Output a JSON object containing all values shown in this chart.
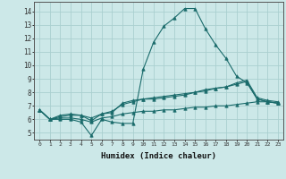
{
  "xlabel": "Humidex (Indice chaleur)",
  "bg_color": "#cce8e8",
  "grid_color": "#aad0d0",
  "line_color": "#1a6b6b",
  "x": [
    0,
    1,
    2,
    3,
    4,
    5,
    6,
    7,
    8,
    9,
    10,
    11,
    12,
    13,
    14,
    15,
    16,
    17,
    18,
    19,
    20,
    21,
    22,
    23
  ],
  "line1": [
    6.7,
    6.0,
    6.0,
    6.0,
    5.8,
    4.8,
    6.0,
    5.8,
    5.7,
    5.7,
    9.7,
    11.7,
    12.9,
    13.5,
    14.2,
    14.2,
    12.7,
    11.5,
    10.5,
    9.2,
    8.7,
    7.5,
    7.3,
    7.2
  ],
  "line2": [
    6.7,
    6.0,
    6.3,
    6.4,
    6.3,
    5.9,
    6.4,
    6.5,
    7.2,
    7.4,
    7.5,
    7.6,
    7.7,
    7.8,
    7.9,
    8.0,
    8.2,
    8.3,
    8.4,
    8.6,
    8.8,
    7.5,
    7.3,
    7.2
  ],
  "line3": [
    6.7,
    6.0,
    6.2,
    6.3,
    6.3,
    6.1,
    6.4,
    6.6,
    7.1,
    7.3,
    7.5,
    7.5,
    7.6,
    7.7,
    7.8,
    8.0,
    8.1,
    8.3,
    8.4,
    8.7,
    8.9,
    7.6,
    7.4,
    7.3
  ],
  "line4": [
    6.7,
    6.0,
    6.1,
    6.1,
    6.0,
    5.8,
    6.1,
    6.2,
    6.4,
    6.5,
    6.6,
    6.6,
    6.7,
    6.7,
    6.8,
    6.9,
    6.9,
    7.0,
    7.0,
    7.1,
    7.2,
    7.3,
    7.3,
    7.2
  ],
  "ylim": [
    4.5,
    14.7
  ],
  "xlim": [
    -0.5,
    23.5
  ],
  "yticks": [
    5,
    6,
    7,
    8,
    9,
    10,
    11,
    12,
    13,
    14
  ],
  "xticks": [
    0,
    1,
    2,
    3,
    4,
    5,
    6,
    7,
    8,
    9,
    10,
    11,
    12,
    13,
    14,
    15,
    16,
    17,
    18,
    19,
    20,
    21,
    22,
    23
  ],
  "xtick_labels": [
    "0",
    "1",
    "2",
    "3",
    "4",
    "5",
    "6",
    "7",
    "8",
    "9",
    "10",
    "11",
    "12",
    "13",
    "14",
    "15",
    "16",
    "17",
    "18",
    "19",
    "20",
    "21",
    "22",
    "23"
  ]
}
